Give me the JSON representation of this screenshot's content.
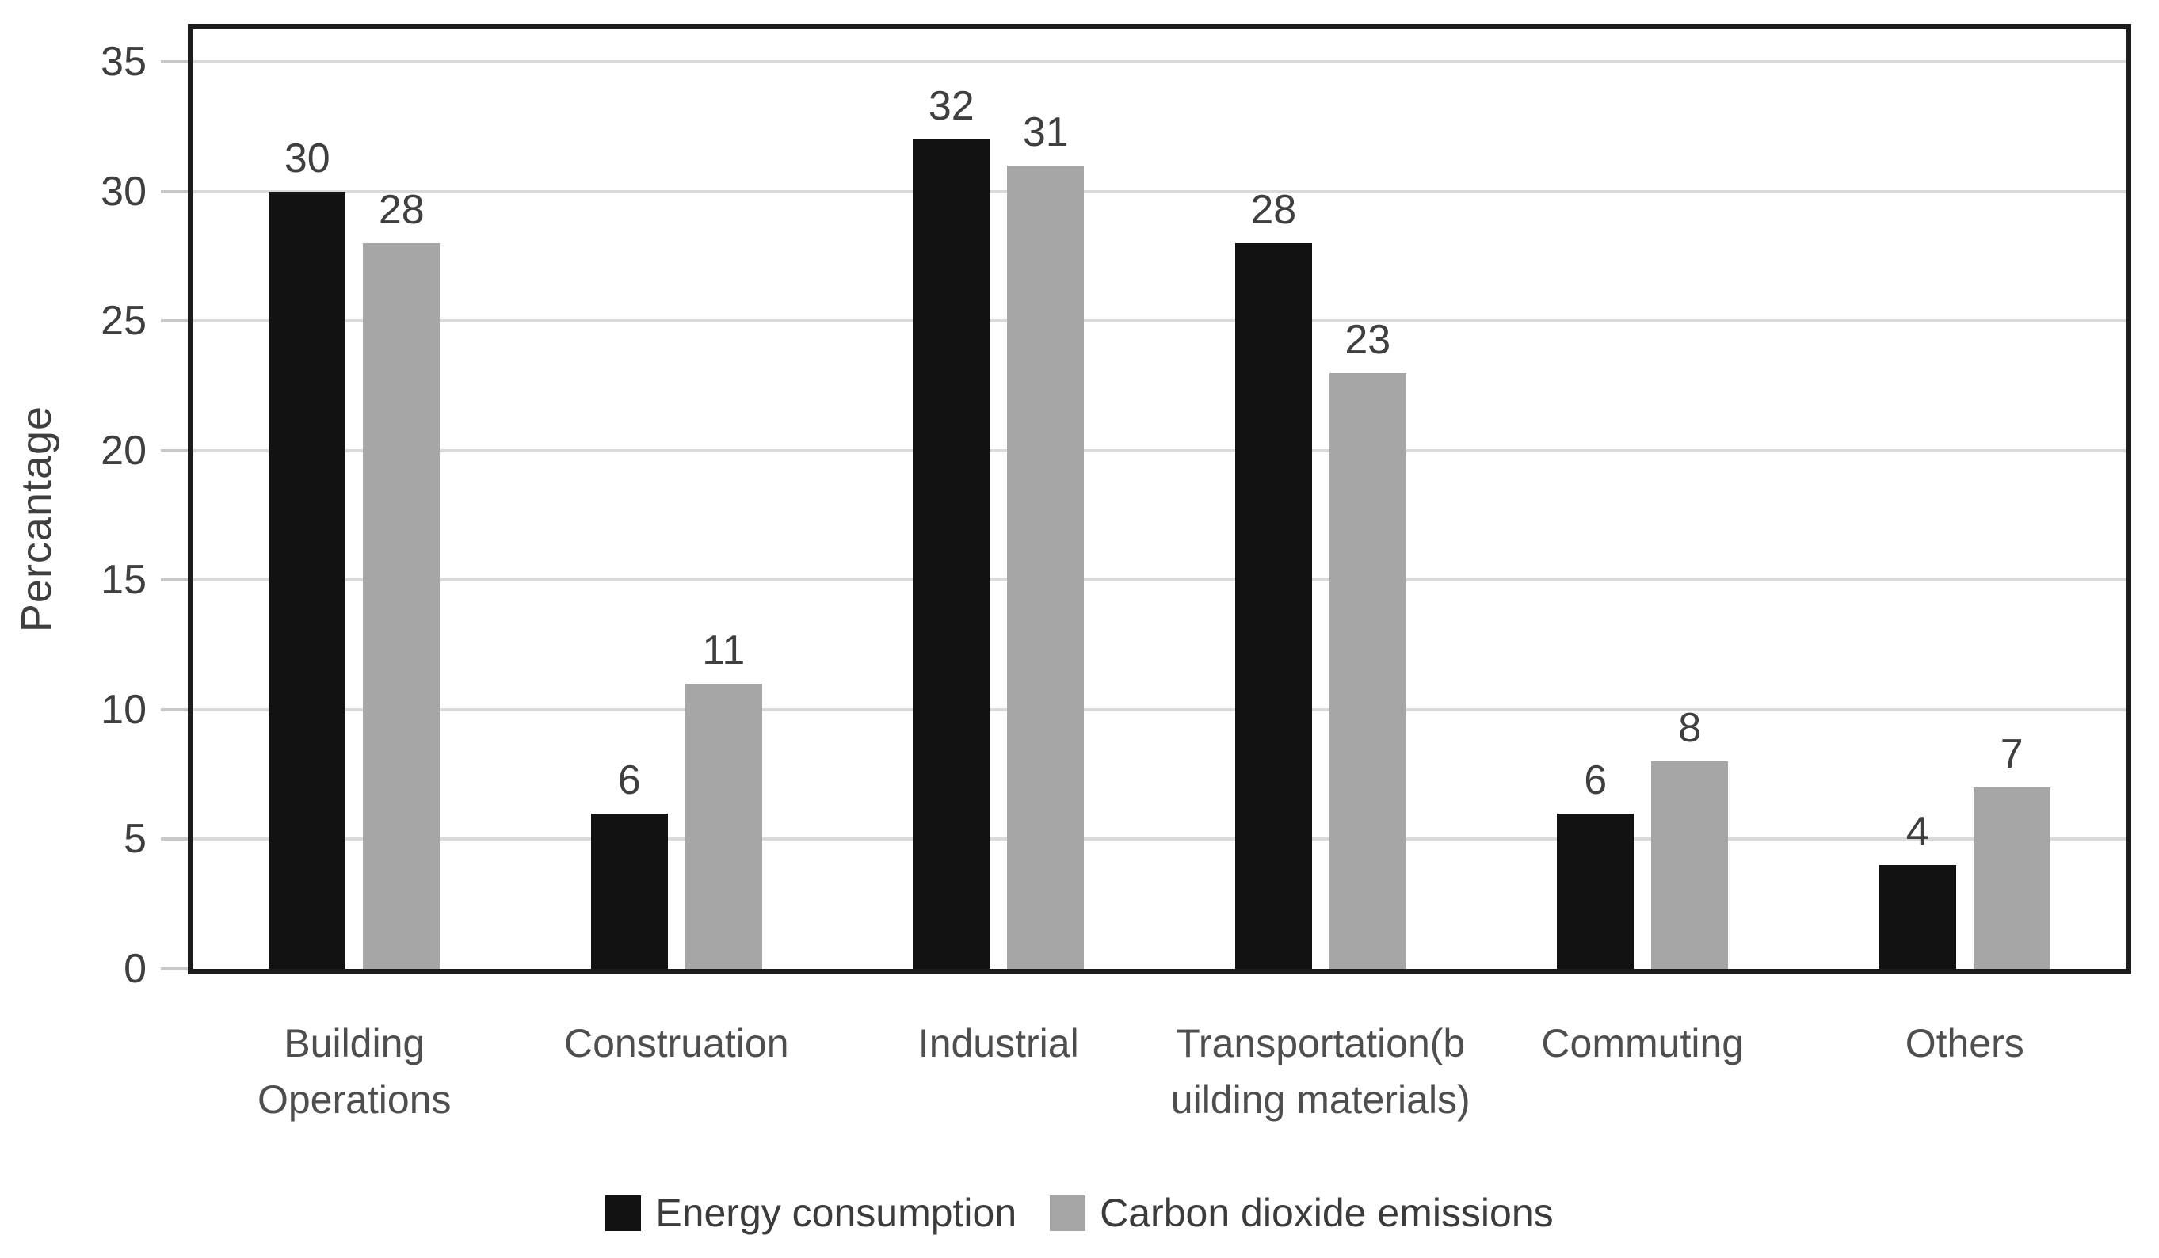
{
  "chart_data": {
    "type": "bar",
    "title": "",
    "xlabel": "",
    "ylabel": "Percantage",
    "ylim": [
      0,
      35
    ],
    "yticks": [
      0,
      5,
      10,
      15,
      20,
      25,
      30,
      35
    ],
    "grid": true,
    "legend_position": "bottom",
    "categories": [
      "Building Operations",
      "Construation",
      "Industrial",
      "Transportation(building materials)",
      "Commuting",
      "Others"
    ],
    "categories_display": [
      "Building\nOperations",
      "Construation",
      "Industrial",
      "Transportation(b\nuilding materials)",
      "Commuting",
      "Others"
    ],
    "series": [
      {
        "name": "Energy consumption",
        "color": "#121212",
        "values": [
          30,
          6,
          32,
          28,
          6,
          4
        ]
      },
      {
        "name": "Carbon dioxide emissions",
        "color": "#a6a6a6",
        "values": [
          28,
          11,
          31,
          23,
          8,
          7
        ]
      }
    ]
  },
  "colors": {
    "plot_border": "#1c1c1c",
    "gridline": "#dadada",
    "tick_mark": "#c8c8c8",
    "label_text": "#3f3f3f"
  }
}
